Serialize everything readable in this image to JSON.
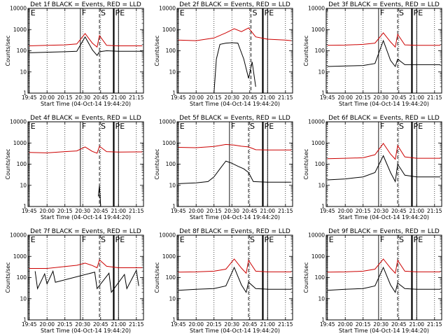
{
  "figure": {
    "ylabel": "Counts/sec",
    "xlabel": "Start Time (04-Oct-14 19:44:20)",
    "colors": {
      "events": "#000000",
      "lld": "#cc0000"
    }
  },
  "chart_data": [
    {
      "type": "line",
      "title": "Det 1f BLACK = Events, RED = LLD",
      "ylabel": "Counts/sec",
      "xlabel": "Start Time (04-Oct-14 19:44:20)",
      "yscale": "log",
      "ylim": [
        1,
        10000
      ],
      "yticks": [
        "1",
        "10",
        "100",
        "1000",
        "10000"
      ],
      "xticks": [
        "19:45",
        "20:00",
        "20:15",
        "20:30",
        "20:45",
        "21:00",
        "21:15"
      ],
      "markers": [
        {
          "label": "E",
          "x": "19:45"
        },
        {
          "label": "F",
          "x": "20:28"
        },
        {
          "label": "S",
          "x": "20:44"
        },
        {
          "label": "P",
          "x": "20:56"
        },
        {
          "label": "E",
          "x": "21:00"
        }
      ],
      "series": [
        {
          "name": "BLACK = Events",
          "color": "#000000",
          "x": [
            "19:45",
            "20:00",
            "20:15",
            "20:25",
            "20:32",
            "20:38",
            "20:42",
            "20:44",
            "20:50",
            "21:00",
            "21:15",
            "21:20"
          ],
          "y": [
            80,
            85,
            90,
            95,
            450,
            110,
            60,
            90,
            100,
            95,
            95,
            95
          ]
        },
        {
          "name": "RED = LLD",
          "color": "#cc0000",
          "x": [
            "19:45",
            "20:00",
            "20:15",
            "20:25",
            "20:32",
            "20:38",
            "20:42",
            "20:44",
            "20:50",
            "21:00",
            "21:15",
            "21:20"
          ],
          "y": [
            170,
            180,
            190,
            210,
            650,
            230,
            150,
            520,
            180,
            170,
            170,
            170
          ]
        }
      ]
    },
    {
      "type": "line",
      "title": "Det 2f BLACK = Events, RED = LLD",
      "ylabel": "Counts/sec",
      "xlabel": "Start Time (04-Oct-14 19:44:20)",
      "yscale": "log",
      "ylim": [
        1,
        10000
      ],
      "yticks": [
        "1",
        "10",
        "100",
        "1000",
        "10000"
      ],
      "xticks": [
        "19:45",
        "20:00",
        "20:15",
        "20:30",
        "20:45",
        "21:00",
        "21:15"
      ],
      "markers": [
        {
          "label": "E",
          "x": "19:45"
        },
        {
          "label": "S",
          "x": "20:46"
        },
        {
          "label": "P",
          "x": "20:56"
        },
        {
          "label": "E",
          "x": "21:00"
        }
      ],
      "series": [
        {
          "name": "BLACK = Events",
          "color": "#000000",
          "x": [
            "20:15",
            "20:17",
            "20:20",
            "20:25",
            "20:30",
            "20:35",
            "20:40",
            "20:44",
            "20:47",
            "20:50"
          ],
          "y": [
            1,
            40,
            200,
            230,
            240,
            230,
            40,
            5,
            30,
            2
          ]
        },
        {
          "name": "RED = LLD",
          "color": "#cc0000",
          "x": [
            "19:45",
            "20:00",
            "20:15",
            "20:25",
            "20:32",
            "20:38",
            "20:44",
            "20:50",
            "21:00",
            "21:15",
            "21:20"
          ],
          "y": [
            320,
            300,
            400,
            700,
            1100,
            800,
            1200,
            450,
            350,
            320,
            300
          ]
        }
      ]
    },
    {
      "type": "line",
      "title": "Det 3f BLACK = Events, RED = LLD",
      "ylabel": "Counts/sec",
      "xlabel": "Start Time (04-Oct-14 19:44:20)",
      "yscale": "log",
      "ylim": [
        1,
        10000
      ],
      "yticks": [
        "1",
        "10",
        "100",
        "1000",
        "10000"
      ],
      "xticks": [
        "19:45",
        "20:00",
        "20:15",
        "20:30",
        "20:45",
        "21:00",
        "21:15"
      ],
      "markers": [
        {
          "label": "F",
          "x": "20:28"
        },
        {
          "label": "S",
          "x": "20:44"
        },
        {
          "label": "P",
          "x": "20:56"
        },
        {
          "label": "E",
          "x": "21:00"
        }
      ],
      "series": [
        {
          "name": "BLACK = Events",
          "color": "#000000",
          "x": [
            "19:45",
            "20:00",
            "20:15",
            "20:25",
            "20:32",
            "20:38",
            "20:42",
            "20:44",
            "20:50",
            "21:00",
            "21:15",
            "21:20"
          ],
          "y": [
            18,
            19,
            20,
            25,
            300,
            35,
            18,
            40,
            22,
            22,
            22,
            22
          ]
        },
        {
          "name": "RED = LLD",
          "color": "#cc0000",
          "x": [
            "19:45",
            "20:00",
            "20:15",
            "20:25",
            "20:32",
            "20:38",
            "20:42",
            "20:44",
            "20:50",
            "21:00",
            "21:15",
            "21:20"
          ],
          "y": [
            180,
            185,
            200,
            230,
            700,
            260,
            150,
            600,
            190,
            180,
            180,
            180
          ]
        }
      ]
    },
    {
      "type": "line",
      "title": "Det 4f BLACK = Events, RED = LLD",
      "ylabel": "Counts/sec",
      "xlabel": "Start Time (04-Oct-14 19:44:20)",
      "yscale": "log",
      "ylim": [
        1,
        10000
      ],
      "yticks": [
        "1",
        "10",
        "100",
        "1000",
        "10000"
      ],
      "xticks": [
        "19:45",
        "20:00",
        "20:15",
        "20:30",
        "20:45",
        "21:00",
        "21:15"
      ],
      "markers": [
        {
          "label": "E",
          "x": "19:45"
        },
        {
          "label": "F",
          "x": "20:28"
        },
        {
          "label": "S",
          "x": "20:44"
        },
        {
          "label": "P",
          "x": "20:56"
        },
        {
          "label": "E",
          "x": "21:00"
        }
      ],
      "series": [
        {
          "name": "BLACK = Events",
          "color": "#000000",
          "x": [
            "20:43",
            "20:44",
            "20:45"
          ],
          "y": [
            3,
            10,
            1
          ]
        },
        {
          "name": "RED = LLD",
          "color": "#cc0000",
          "x": [
            "19:45",
            "20:00",
            "20:15",
            "20:25",
            "20:32",
            "20:38",
            "20:42",
            "20:44",
            "20:50",
            "21:00",
            "21:15",
            "21:20"
          ],
          "y": [
            360,
            340,
            390,
            420,
            650,
            400,
            330,
            700,
            390,
            370,
            380,
            380
          ]
        }
      ]
    },
    {
      "type": "line",
      "title": "Det 5f BLACK = Events, RED = LLD",
      "ylabel": "Counts/sec",
      "xlabel": "Start Time (04-Oct-14 19:44:20)",
      "yscale": "log",
      "ylim": [
        1,
        10000
      ],
      "yticks": [
        "1",
        "10",
        "100",
        "1000",
        "10000"
      ],
      "xticks": [
        "19:45",
        "20:00",
        "20:15",
        "20:30",
        "20:45",
        "21:00",
        "21:15"
      ],
      "markers": [
        {
          "label": "E",
          "x": "19:45"
        },
        {
          "label": "F",
          "x": "20:28"
        },
        {
          "label": "S",
          "x": "20:44"
        },
        {
          "label": "P",
          "x": "20:56"
        },
        {
          "label": "E",
          "x": "21:00"
        }
      ],
      "series": [
        {
          "name": "BLACK = Events",
          "color": "#000000",
          "x": [
            "19:45",
            "20:00",
            "20:10",
            "20:15",
            "20:20",
            "20:25",
            "20:30",
            "20:35",
            "20:40",
            "20:44",
            "20:48",
            "21:00",
            "21:15",
            "21:20"
          ],
          "y": [
            12,
            13,
            15,
            25,
            60,
            140,
            110,
            80,
            60,
            40,
            15,
            14,
            14,
            14
          ]
        },
        {
          "name": "RED = LLD",
          "color": "#cc0000",
          "x": [
            "19:45",
            "20:00",
            "20:15",
            "20:25",
            "20:32",
            "20:38",
            "20:44",
            "20:50",
            "21:00",
            "21:15",
            "21:20"
          ],
          "y": [
            620,
            600,
            680,
            850,
            800,
            700,
            650,
            480,
            470,
            470,
            470
          ]
        }
      ]
    },
    {
      "type": "line",
      "title": "Det 6f BLACK = Events, RED = LLD",
      "ylabel": "Counts/sec",
      "xlabel": "Start Time (04-Oct-14 19:44:20)",
      "yscale": "log",
      "ylim": [
        1,
        10000
      ],
      "yticks": [
        "1",
        "10",
        "100",
        "1000",
        "10000"
      ],
      "xticks": [
        "19:45",
        "20:00",
        "20:15",
        "20:30",
        "20:45",
        "21:00",
        "21:15"
      ],
      "markers": [
        {
          "label": "F",
          "x": "20:28"
        },
        {
          "label": "S",
          "x": "20:44"
        },
        {
          "label": "P",
          "x": "20:56"
        },
        {
          "label": "E",
          "x": "21:00"
        }
      ],
      "series": [
        {
          "name": "BLACK = Events",
          "color": "#000000",
          "x": [
            "19:45",
            "20:00",
            "20:15",
            "20:25",
            "20:32",
            "20:38",
            "20:42",
            "20:44",
            "20:50",
            "21:00",
            "21:15",
            "21:20"
          ],
          "y": [
            18,
            20,
            25,
            40,
            250,
            40,
            15,
            100,
            30,
            25,
            25,
            25
          ]
        },
        {
          "name": "RED = LLD",
          "color": "#cc0000",
          "x": [
            "19:45",
            "20:00",
            "20:15",
            "20:25",
            "20:32",
            "20:38",
            "20:42",
            "20:44",
            "20:50",
            "21:00",
            "21:15",
            "21:20"
          ],
          "y": [
            180,
            190,
            200,
            280,
            950,
            300,
            170,
            750,
            220,
            190,
            190,
            190
          ]
        }
      ]
    },
    {
      "type": "line",
      "title": "Det 7f BLACK = Events, RED = LLD",
      "ylabel": "Counts/sec",
      "xlabel": "Start Time (04-Oct-14 19:44:20)",
      "yscale": "log",
      "ylim": [
        1,
        10000
      ],
      "yticks": [
        "1",
        "10",
        "100",
        "1000",
        "10000"
      ],
      "xticks": [
        "19:45",
        "20:00",
        "20:15",
        "20:30",
        "20:45",
        "21:00",
        "21:15"
      ],
      "markers": [
        {
          "label": "E",
          "x": "19:45"
        },
        {
          "label": "F",
          "x": "20:28"
        },
        {
          "label": "S",
          "x": "20:44"
        },
        {
          "label": "P",
          "x": "20:56"
        },
        {
          "label": "E",
          "x": "21:00"
        }
      ],
      "series": [
        {
          "name": "BLACK = Events",
          "color": "#000000",
          "x": [
            "19:50",
            "19:52",
            "19:58",
            "20:00",
            "20:05",
            "20:07",
            "20:40",
            "20:42",
            "20:52",
            "20:54",
            "21:05",
            "21:07",
            "21:15",
            "21:17"
          ],
          "y": [
            200,
            30,
            150,
            50,
            200,
            60,
            180,
            30,
            160,
            20,
            140,
            30,
            220,
            40
          ]
        },
        {
          "name": "RED = LLD",
          "color": "#cc0000",
          "x": [
            "19:45",
            "20:00",
            "20:15",
            "20:25",
            "20:32",
            "20:38",
            "20:42",
            "20:44",
            "20:50",
            "21:00",
            "21:15",
            "21:20"
          ],
          "y": [
            270,
            270,
            330,
            380,
            480,
            370,
            290,
            680,
            340,
            290,
            290,
            290
          ]
        }
      ]
    },
    {
      "type": "line",
      "title": "Det 8f BLACK = Events, RED = LLD",
      "ylabel": "Counts/sec",
      "xlabel": "Start Time (04-Oct-14 19:44:20)",
      "yscale": "log",
      "ylim": [
        1,
        10000
      ],
      "yticks": [
        "1",
        "10",
        "100",
        "1000",
        "10000"
      ],
      "xticks": [
        "19:45",
        "20:00",
        "20:15",
        "20:30",
        "20:45",
        "21:00",
        "21:15"
      ],
      "markers": [
        {
          "label": "E",
          "x": "19:45"
        },
        {
          "label": "S",
          "x": "20:44"
        },
        {
          "label": "P",
          "x": "20:56"
        },
        {
          "label": "E",
          "x": "21:00"
        }
      ],
      "series": [
        {
          "name": "BLACK = Events",
          "color": "#000000",
          "x": [
            "19:45",
            "20:00",
            "20:15",
            "20:25",
            "20:32",
            "20:38",
            "20:42",
            "20:44",
            "20:50",
            "21:00",
            "21:15",
            "21:20"
          ],
          "y": [
            25,
            28,
            30,
            40,
            300,
            45,
            20,
            60,
            30,
            28,
            28,
            28
          ]
        },
        {
          "name": "RED = LLD",
          "color": "#cc0000",
          "x": [
            "19:45",
            "20:00",
            "20:15",
            "20:25",
            "20:32",
            "20:38",
            "20:42",
            "20:44",
            "20:50",
            "21:00",
            "21:15",
            "21:20"
          ],
          "y": [
            180,
            185,
            200,
            250,
            750,
            280,
            160,
            650,
            200,
            185,
            185,
            185
          ]
        }
      ]
    },
    {
      "type": "line",
      "title": "Det 9f BLACK = Events, RED = LLD",
      "ylabel": "Counts/sec",
      "xlabel": "Start Time (04-Oct-14 19:44:20)",
      "yscale": "log",
      "ylim": [
        1,
        10000
      ],
      "yticks": [
        "1",
        "10",
        "100",
        "1000",
        "10000"
      ],
      "xticks": [
        "19:45",
        "20:00",
        "20:15",
        "20:30",
        "20:45",
        "21:00",
        "21:15"
      ],
      "markers": [
        {
          "label": "E",
          "x": "19:45"
        },
        {
          "label": "F",
          "x": "20:28"
        },
        {
          "label": "S",
          "x": "20:44"
        },
        {
          "label": "P",
          "x": "20:56"
        },
        {
          "label": "E",
          "x": "21:00"
        }
      ],
      "series": [
        {
          "name": "BLACK = Events",
          "color": "#000000",
          "x": [
            "19:45",
            "20:00",
            "20:15",
            "20:25",
            "20:32",
            "20:38",
            "20:42",
            "20:44",
            "20:50",
            "21:00",
            "21:15",
            "21:20"
          ],
          "y": [
            25,
            28,
            30,
            40,
            300,
            45,
            20,
            55,
            30,
            28,
            28,
            28
          ]
        },
        {
          "name": "RED = LLD",
          "color": "#cc0000",
          "x": [
            "19:45",
            "20:00",
            "20:15",
            "20:25",
            "20:32",
            "20:38",
            "20:42",
            "20:44",
            "20:50",
            "21:00",
            "21:15",
            "21:20"
          ],
          "y": [
            180,
            185,
            200,
            250,
            750,
            280,
            160,
            650,
            200,
            185,
            185,
            185
          ]
        }
      ]
    }
  ]
}
